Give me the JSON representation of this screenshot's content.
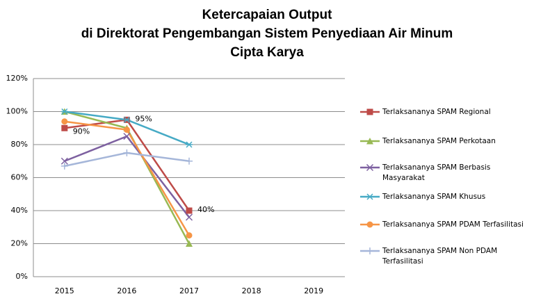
{
  "chart_data": {
    "type": "line",
    "title": [
      "Ketercapaian Output",
      "di Direktorat Pengembangan Sistem Penyediaan Air Minum",
      "Cipta Karya"
    ],
    "categories": [
      "2015",
      "2016",
      "2017",
      "2018",
      "2019"
    ],
    "ylim": [
      0,
      120
    ],
    "yticks": [
      {
        "value": 0,
        "label": "0%"
      },
      {
        "value": 20,
        "label": "20%"
      },
      {
        "value": 40,
        "label": "40%"
      },
      {
        "value": 60,
        "label": "60%"
      },
      {
        "value": 80,
        "label": "80%"
      },
      {
        "value": 100,
        "label": "100%"
      },
      {
        "value": 120,
        "label": "120%"
      }
    ],
    "grid": true,
    "legend": "right",
    "series": [
      {
        "name": "Terlaksananya SPAM Regional",
        "color": "#be4b48",
        "marker": "square",
        "values": [
          90,
          95,
          40,
          null,
          null
        ],
        "value_labels": [
          "90%",
          "95%",
          "40%",
          null,
          null
        ]
      },
      {
        "name": "Terlaksananya SPAM Perkotaan",
        "color": "#98b954",
        "marker": "triangle",
        "values": [
          100,
          90,
          20,
          null,
          null
        ]
      },
      {
        "name": "Terlaksananya SPAM Berbasis Masyarakat",
        "color": "#7d60a0",
        "marker": "x",
        "values": [
          70,
          85,
          36,
          null,
          null
        ]
      },
      {
        "name": "Terlaksananya SPAM Khusus",
        "color": "#46aac5",
        "marker": "star",
        "values": [
          100,
          95,
          80,
          null,
          null
        ]
      },
      {
        "name": "Terlaksananya SPAM PDAM Terfasilitasi",
        "color": "#f69546",
        "marker": "circle",
        "values": [
          94,
          89,
          25,
          null,
          null
        ]
      },
      {
        "name": "Terlaksananya SPAM Non PDAM Terfasilitasi",
        "color": "#a5b6d9",
        "marker": "plus",
        "values": [
          67,
          75,
          70,
          null,
          null
        ]
      }
    ]
  }
}
